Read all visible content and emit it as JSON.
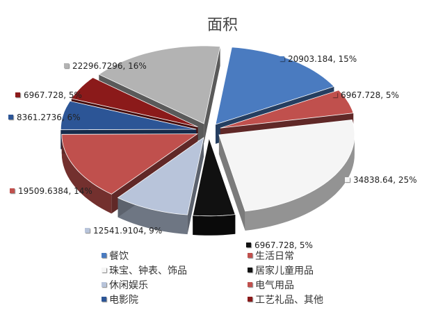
{
  "chart_data": {
    "type": "pie",
    "title": "面积",
    "series": [
      {
        "name": "餐饮",
        "value": 20903.184,
        "label": "20903.184, 15%",
        "color": "#4a7bc0"
      },
      {
        "name": "生活日常",
        "value": 6967.728,
        "label": "6967.728, 5%",
        "color": "#c0504d"
      },
      {
        "name": "珠宝、钟表、饰品",
        "value": 34838.64,
        "label": "34838.64, 25%",
        "color": "#f5f5f5"
      },
      {
        "name": "居家儿童用品",
        "value": 6967.728,
        "label": "6967.728, 5%",
        "color": "#111111"
      },
      {
        "name": "休闲娱乐",
        "value": 12541.9104,
        "label": "12541.9104, 9%",
        "color": "#b8c4da"
      },
      {
        "name": "电气用品",
        "value": 19509.6384,
        "label": "19509.6384, 14%",
        "color": "#c0504d"
      },
      {
        "name": "电影院",
        "value": 8361.2736,
        "label": "8361.2736, 6%",
        "color": "#2c5596"
      },
      {
        "name": "工艺礼品、其他",
        "value": 6967.728,
        "label": "6967.728, 5%",
        "color": "#8b1a1a"
      },
      {
        "name": "",
        "value": 22296.7296,
        "label": "22296.7296, 16%",
        "color": "#b3b3b3"
      }
    ],
    "legend": [
      "餐饮",
      "生活日常",
      "珠宝、钟表、饰品",
      "居家儿童用品",
      "休闲娱乐",
      "电气用品",
      "电影院",
      "工艺礼品、其他"
    ],
    "legend_position": "bottom",
    "exploded": true,
    "style": "3d"
  }
}
